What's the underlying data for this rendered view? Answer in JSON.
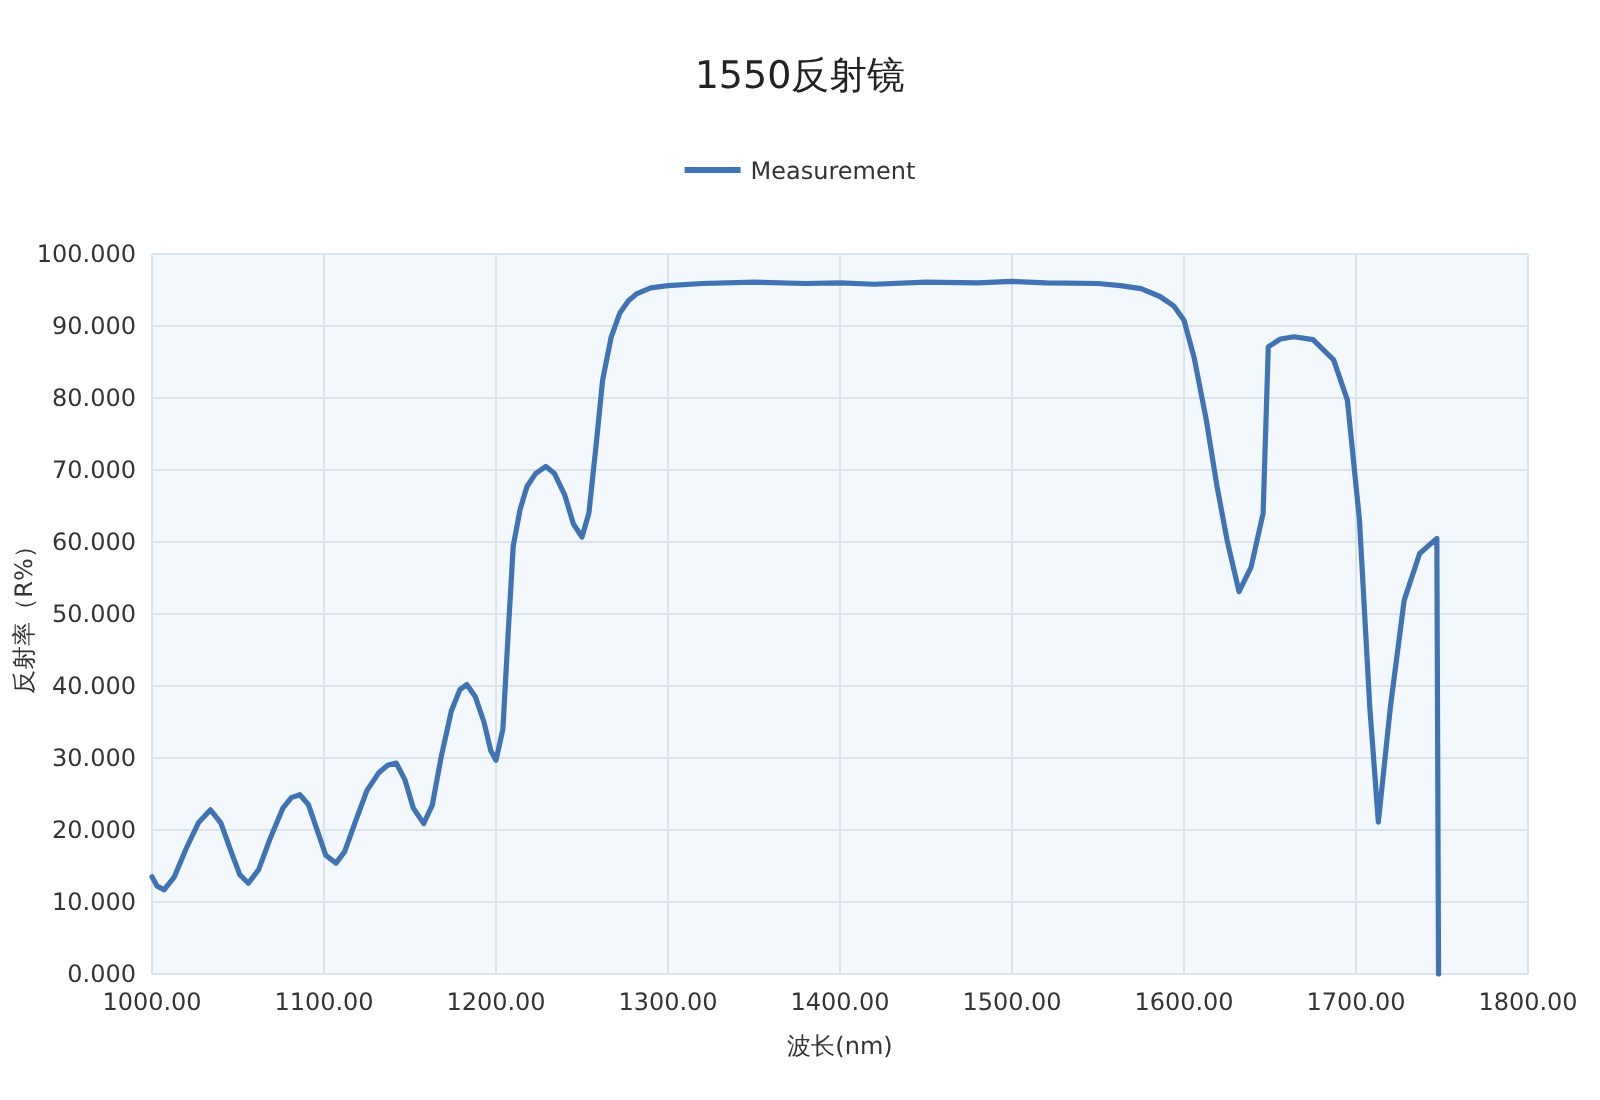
{
  "chart_data": {
    "type": "line",
    "title": "1550反射镜",
    "xlabel": "波长(nm)",
    "ylabel": "反射率（R%）",
    "legend": "top",
    "grid": true,
    "marker": "none",
    "line_style": "solid",
    "xlim": [
      1000,
      1800
    ],
    "ylim": [
      0,
      100
    ],
    "xticks": [
      {
        "value": 1000,
        "label": "1000.00"
      },
      {
        "value": 1100,
        "label": "1100.00"
      },
      {
        "value": 1200,
        "label": "1200.00"
      },
      {
        "value": 1300,
        "label": "1300.00"
      },
      {
        "value": 1400,
        "label": "1400.00"
      },
      {
        "value": 1500,
        "label": "1500.00"
      },
      {
        "value": 1600,
        "label": "1600.00"
      },
      {
        "value": 1700,
        "label": "1700.00"
      },
      {
        "value": 1800,
        "label": "1800.00"
      }
    ],
    "yticks": [
      {
        "value": 0,
        "label": "0.000"
      },
      {
        "value": 10,
        "label": "10.000"
      },
      {
        "value": 20,
        "label": "20.000"
      },
      {
        "value": 30,
        "label": "30.000"
      },
      {
        "value": 40,
        "label": "40.000"
      },
      {
        "value": 50,
        "label": "50.000"
      },
      {
        "value": 60,
        "label": "60.000"
      },
      {
        "value": 70,
        "label": "70.000"
      },
      {
        "value": 80,
        "label": "80.000"
      },
      {
        "value": 90,
        "label": "90.000"
      },
      {
        "value": 100,
        "label": "100.000"
      }
    ],
    "series": [
      {
        "name": "Measurement",
        "color": "#3f73b4",
        "x": [
          1000,
          1003,
          1007,
          1013,
          1020,
          1027,
          1034,
          1040,
          1046,
          1051,
          1056,
          1062,
          1069,
          1076,
          1081,
          1086,
          1091,
          1096,
          1101,
          1107,
          1112,
          1118,
          1125,
          1132,
          1137,
          1142,
          1147,
          1152,
          1158,
          1163,
          1168,
          1174,
          1179,
          1183,
          1188,
          1193,
          1197,
          1200,
          1204,
          1207,
          1210,
          1214,
          1218,
          1223,
          1229,
          1234,
          1240,
          1245,
          1250,
          1254,
          1258,
          1262,
          1267,
          1272,
          1277,
          1282,
          1290,
          1300,
          1320,
          1350,
          1380,
          1400,
          1420,
          1450,
          1480,
          1500,
          1520,
          1550,
          1563,
          1575,
          1586,
          1594,
          1600,
          1606,
          1613,
          1619,
          1625,
          1632,
          1639,
          1646,
          1649,
          1656,
          1664,
          1675,
          1687,
          1695,
          1702,
          1708,
          1713,
          1720,
          1728,
          1737,
          1747,
          1748
        ],
        "values": [
          13.5,
          12.2,
          11.7,
          13.5,
          17.5,
          21.0,
          22.8,
          21.0,
          17.0,
          13.8,
          12.6,
          14.5,
          19.0,
          23.0,
          24.5,
          24.9,
          23.5,
          20.0,
          16.5,
          15.4,
          17.0,
          21.0,
          25.5,
          28.0,
          29.0,
          29.3,
          27.0,
          23.0,
          20.9,
          23.5,
          30.0,
          36.5,
          39.5,
          40.2,
          38.5,
          35.0,
          31.0,
          29.7,
          34.0,
          47.0,
          59.4,
          64.5,
          67.7,
          69.5,
          70.5,
          69.5,
          66.5,
          62.5,
          60.7,
          64.0,
          73.0,
          82.5,
          88.5,
          91.8,
          93.5,
          94.5,
          95.3,
          95.6,
          95.9,
          96.1,
          95.9,
          96.0,
          95.8,
          96.1,
          96.0,
          96.2,
          96.0,
          95.9,
          95.6,
          95.2,
          94.1,
          92.8,
          90.8,
          85.5,
          76.9,
          68.0,
          60.3,
          53.1,
          56.5,
          64.0,
          87.1,
          88.2,
          88.5,
          88.1,
          85.3,
          79.7,
          63.1,
          37.1,
          21.1,
          37.1,
          51.9,
          58.4,
          60.5,
          0
        ]
      }
    ]
  }
}
